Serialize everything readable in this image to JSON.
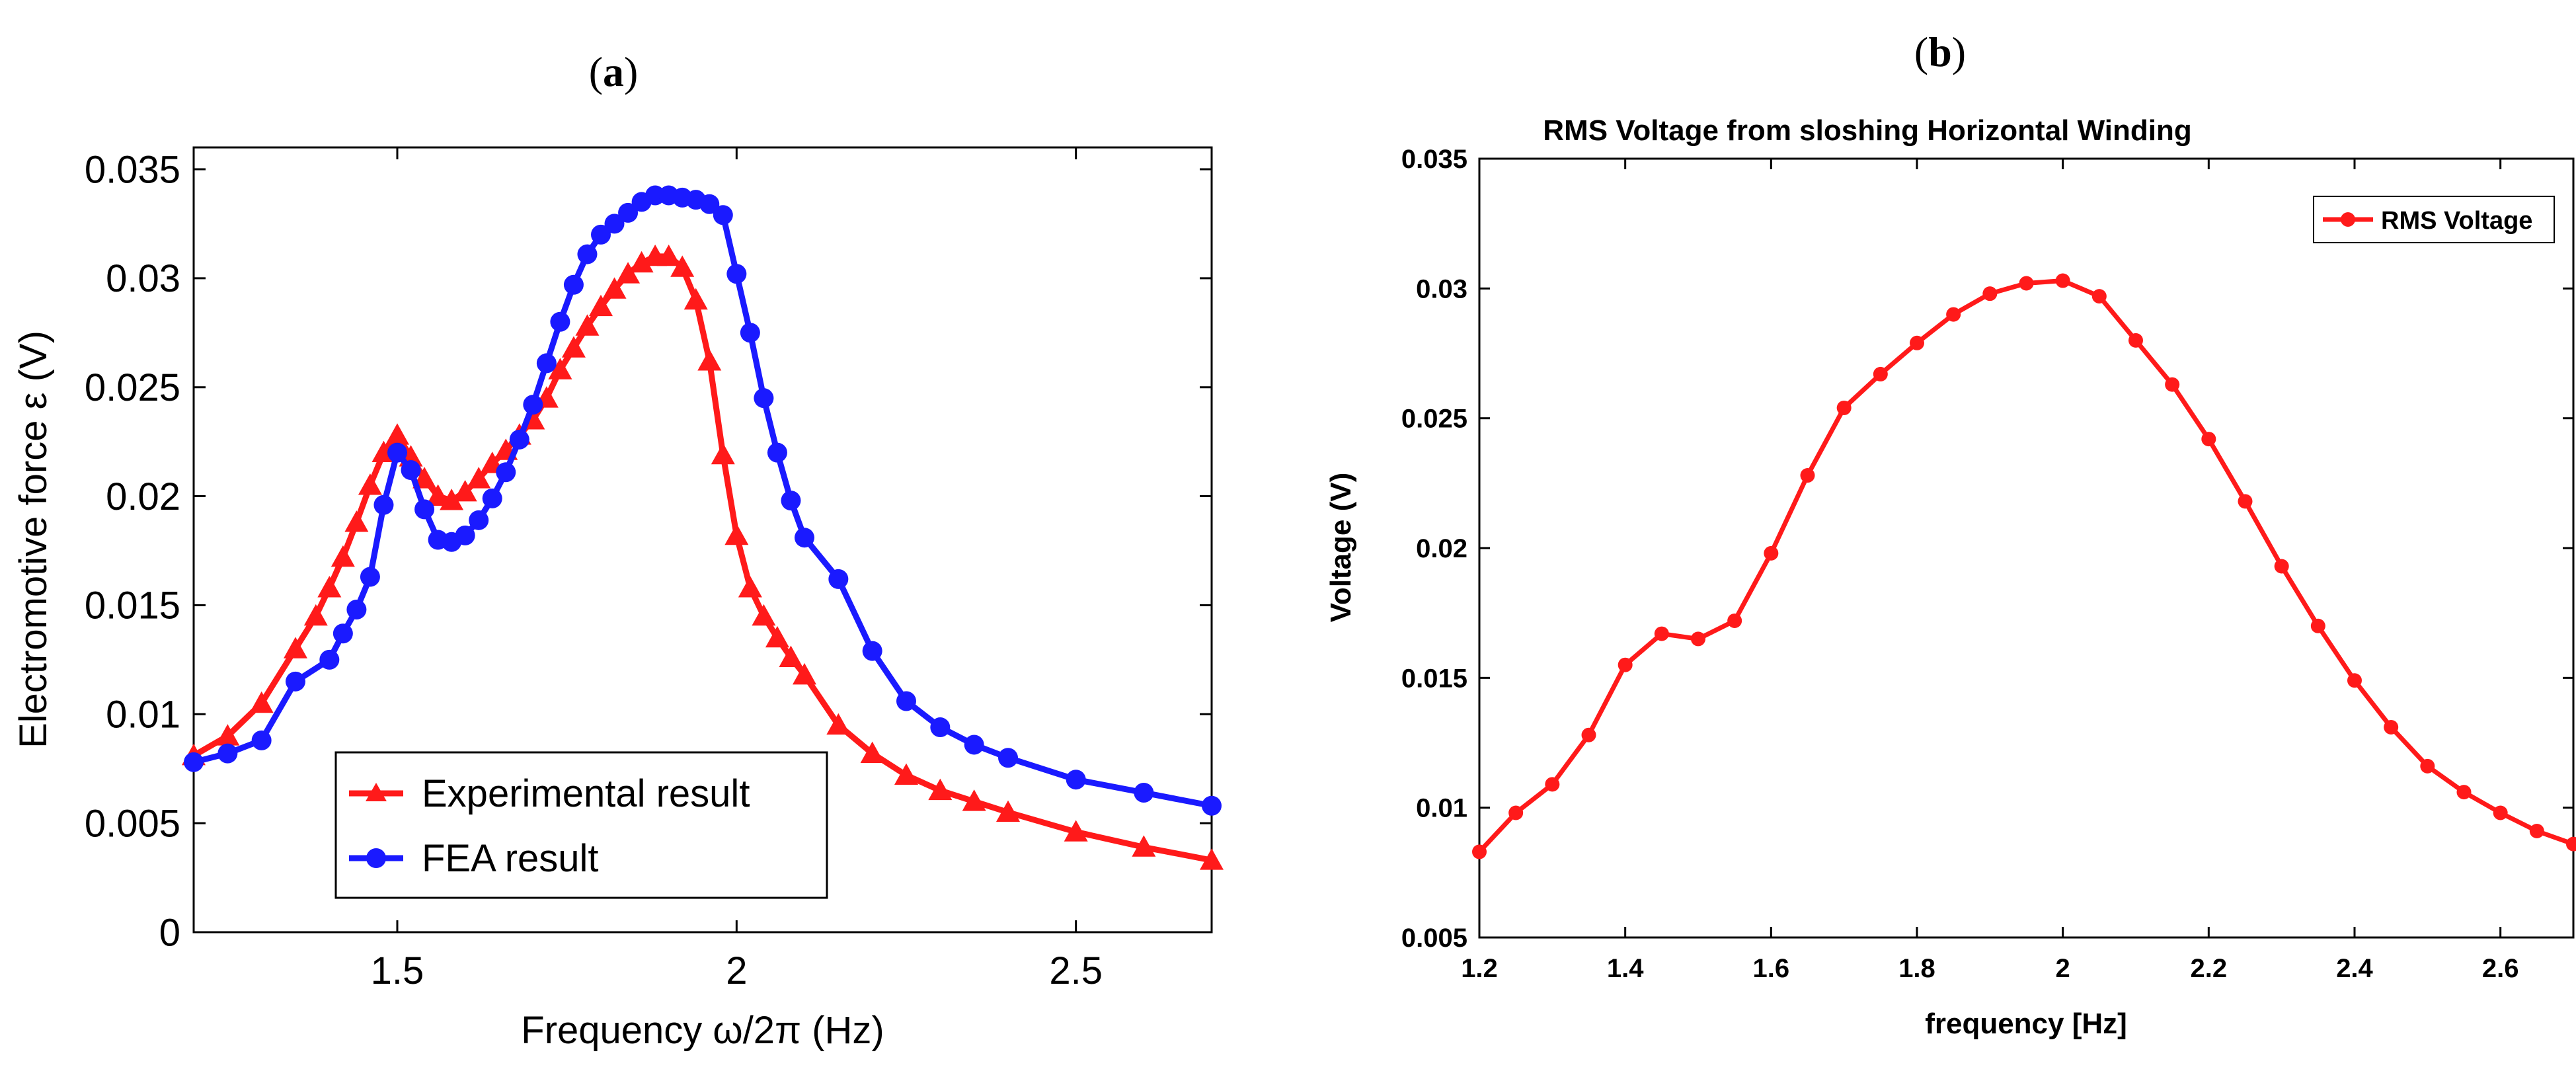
{
  "panels": {
    "a": {
      "label_open": "(",
      "label_letter": "a",
      "label_close": ")"
    },
    "b": {
      "label_open": "(",
      "label_letter": "b",
      "label_close": ")"
    }
  },
  "chart_data": [
    {
      "id": "a",
      "type": "line",
      "title": "",
      "xlabel": "Frequency ω/2π (Hz)",
      "ylabel": "Electromotive force ε (V)",
      "xlim": [
        1.2,
        2.7
      ],
      "ylim": [
        0,
        0.036
      ],
      "xticks": [
        1.5,
        2,
        2.5
      ],
      "xtick_labels": [
        "1.5",
        "2",
        "2.5"
      ],
      "yticks": [
        0,
        0.005,
        0.01,
        0.015,
        0.02,
        0.025,
        0.03,
        0.035
      ],
      "ytick_labels": [
        "0",
        "0.005",
        "0.01",
        "0.015",
        "0.02",
        "0.025",
        "0.03",
        "0.035"
      ],
      "grid": false,
      "legend_position": "bottom-center",
      "series": [
        {
          "name": "Experimental result",
          "color": "#ff1a1a",
          "marker": "triangle",
          "x": [
            1.2,
            1.25,
            1.3,
            1.35,
            1.38,
            1.4,
            1.42,
            1.44,
            1.46,
            1.48,
            1.5,
            1.52,
            1.54,
            1.56,
            1.58,
            1.6,
            1.62,
            1.64,
            1.66,
            1.68,
            1.7,
            1.72,
            1.74,
            1.76,
            1.78,
            1.8,
            1.82,
            1.84,
            1.86,
            1.88,
            1.9,
            1.92,
            1.94,
            1.96,
            1.98,
            2.0,
            2.02,
            2.04,
            2.06,
            2.08,
            2.1,
            2.15,
            2.2,
            2.25,
            2.3,
            2.35,
            2.4,
            2.5,
            2.6,
            2.7
          ],
          "values": [
            0.0081,
            0.009,
            0.0105,
            0.013,
            0.0145,
            0.0158,
            0.0172,
            0.0188,
            0.0205,
            0.022,
            0.0228,
            0.0218,
            0.0208,
            0.02,
            0.0198,
            0.0202,
            0.0208,
            0.0215,
            0.0221,
            0.0228,
            0.0235,
            0.0245,
            0.0258,
            0.0268,
            0.0278,
            0.0287,
            0.0295,
            0.0302,
            0.0307,
            0.031,
            0.031,
            0.0305,
            0.029,
            0.0262,
            0.0219,
            0.0182,
            0.0158,
            0.0145,
            0.0135,
            0.0126,
            0.0118,
            0.0095,
            0.0082,
            0.0072,
            0.0065,
            0.006,
            0.0055,
            0.0046,
            0.0039,
            0.0033
          ]
        },
        {
          "name": "FEA result",
          "color": "#1a1aff",
          "marker": "circle",
          "x": [
            1.2,
            1.25,
            1.3,
            1.35,
            1.4,
            1.42,
            1.44,
            1.46,
            1.48,
            1.5,
            1.52,
            1.54,
            1.56,
            1.58,
            1.6,
            1.62,
            1.64,
            1.66,
            1.68,
            1.7,
            1.72,
            1.74,
            1.76,
            1.78,
            1.8,
            1.82,
            1.84,
            1.86,
            1.88,
            1.9,
            1.92,
            1.94,
            1.96,
            1.98,
            2.0,
            2.02,
            2.04,
            2.06,
            2.08,
            2.1,
            2.15,
            2.2,
            2.25,
            2.3,
            2.35,
            2.4,
            2.5,
            2.6,
            2.7
          ],
          "values": [
            0.0078,
            0.0082,
            0.0088,
            0.0115,
            0.0125,
            0.0137,
            0.0148,
            0.0163,
            0.0196,
            0.022,
            0.0212,
            0.0194,
            0.018,
            0.0179,
            0.0182,
            0.0189,
            0.0199,
            0.0211,
            0.0226,
            0.0242,
            0.0261,
            0.028,
            0.0297,
            0.0311,
            0.032,
            0.0325,
            0.033,
            0.0335,
            0.0338,
            0.0338,
            0.0337,
            0.0336,
            0.0334,
            0.0329,
            0.0302,
            0.0275,
            0.0245,
            0.022,
            0.0198,
            0.0181,
            0.0162,
            0.0129,
            0.0106,
            0.0094,
            0.0086,
            0.008,
            0.007,
            0.0064,
            0.0058
          ]
        }
      ]
    },
    {
      "id": "b",
      "type": "line",
      "title": "RMS Voltage from sloshing Horizontal Winding",
      "xlabel": "frequency [Hz]",
      "ylabel": "Voltage (V)",
      "xlim": [
        1.2,
        2.7
      ],
      "ylim": [
        0.005,
        0.035
      ],
      "xticks": [
        1.2,
        1.4,
        1.6,
        1.8,
        2.0,
        2.2,
        2.4,
        2.6
      ],
      "xtick_labels": [
        "1.2",
        "1.4",
        "1.6",
        "1.8",
        "2",
        "2.2",
        "2.4",
        "2.6"
      ],
      "yticks": [
        0.005,
        0.01,
        0.015,
        0.02,
        0.025,
        0.03,
        0.035
      ],
      "ytick_labels": [
        "0.005",
        "0.01",
        "0.015",
        "0.02",
        "0.025",
        "0.03",
        "0.035"
      ],
      "grid": false,
      "legend_position": "top-right",
      "series": [
        {
          "name": "RMS Voltage",
          "color": "#ff1a1a",
          "marker": "circle",
          "x": [
            1.2,
            1.25,
            1.3,
            1.35,
            1.4,
            1.45,
            1.5,
            1.55,
            1.6,
            1.65,
            1.7,
            1.75,
            1.8,
            1.85,
            1.9,
            1.95,
            2.0,
            2.05,
            2.1,
            2.15,
            2.2,
            2.25,
            2.3,
            2.35,
            2.4,
            2.45,
            2.5,
            2.55,
            2.6,
            2.65,
            2.7
          ],
          "values": [
            0.0083,
            0.0098,
            0.0109,
            0.0128,
            0.0155,
            0.0167,
            0.0165,
            0.0172,
            0.0198,
            0.0228,
            0.0254,
            0.0267,
            0.0279,
            0.029,
            0.0298,
            0.0302,
            0.0303,
            0.0297,
            0.028,
            0.0263,
            0.0242,
            0.0218,
            0.0193,
            0.017,
            0.0149,
            0.0131,
            0.0116,
            0.0106,
            0.0098,
            0.0091,
            0.0086
          ]
        }
      ]
    }
  ]
}
